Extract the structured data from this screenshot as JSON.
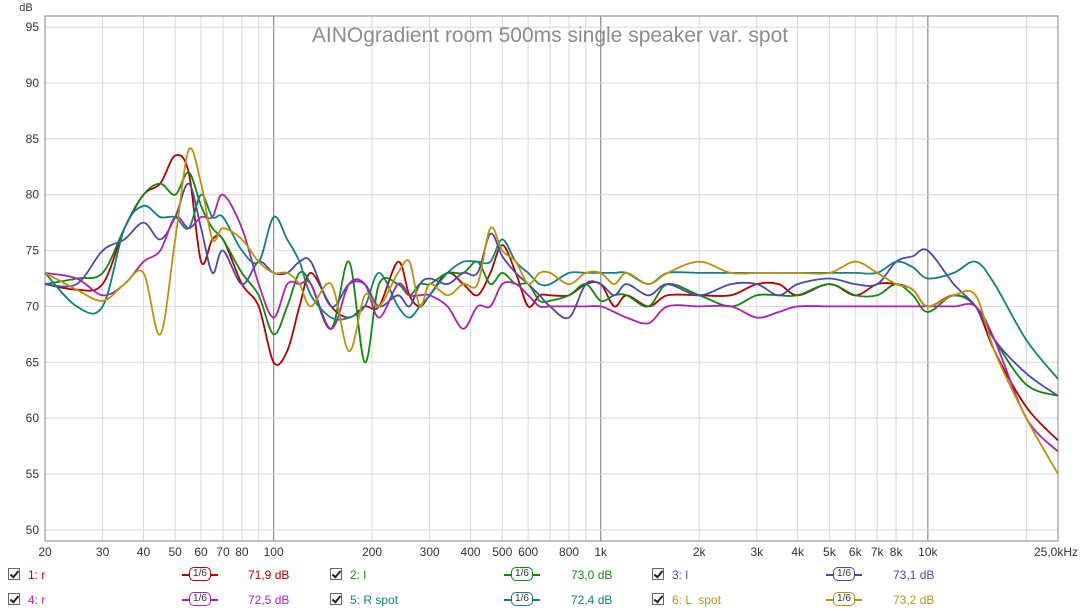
{
  "chart_data": {
    "type": "line",
    "title": "AINOgradient room 500ms single speaker var. spot",
    "ylabel": "dB",
    "xscale": "log",
    "xlim": [
      20,
      25000
    ],
    "ylim": [
      49,
      96
    ],
    "yticks": [
      50,
      55,
      60,
      65,
      70,
      75,
      80,
      85,
      90,
      95
    ],
    "xticks": [
      {
        "v": 20,
        "label": "20"
      },
      {
        "v": 30,
        "label": "30"
      },
      {
        "v": 40,
        "label": "40"
      },
      {
        "v": 50,
        "label": "50"
      },
      {
        "v": 60,
        "label": "60"
      },
      {
        "v": 70,
        "label": "70"
      },
      {
        "v": 80,
        "label": "80"
      },
      {
        "v": 100,
        "label": "100"
      },
      {
        "v": 200,
        "label": "200"
      },
      {
        "v": 300,
        "label": "300"
      },
      {
        "v": 400,
        "label": "400"
      },
      {
        "v": 500,
        "label": "500"
      },
      {
        "v": 600,
        "label": "600"
      },
      {
        "v": 800,
        "label": "800"
      },
      {
        "v": 1000,
        "label": "1k"
      },
      {
        "v": 2000,
        "label": "2k"
      },
      {
        "v": 3000,
        "label": "3k"
      },
      {
        "v": 4000,
        "label": "4k"
      },
      {
        "v": 5000,
        "label": "5k"
      },
      {
        "v": 6000,
        "label": "6k"
      },
      {
        "v": 7000,
        "label": "7k"
      },
      {
        "v": 8000,
        "label": "8k"
      },
      {
        "v": 10000,
        "label": "10k"
      },
      {
        "v": 25000,
        "label": "25,0kHz"
      }
    ],
    "grid": true,
    "series": [
      {
        "name": "1: r",
        "color": "#b00000",
        "smoothing": "1/6",
        "spl": "71,9 dB",
        "x": [
          20,
          25,
          30,
          35,
          40,
          45,
          50,
          55,
          60,
          65,
          70,
          80,
          90,
          100,
          110,
          120,
          130,
          150,
          170,
          190,
          210,
          240,
          260,
          280,
          300,
          340,
          380,
          420,
          460,
          500,
          550,
          600,
          650,
          700,
          800,
          900,
          1000,
          1100,
          1200,
          1400,
          1600,
          2000,
          2500,
          3000,
          3500,
          4000,
          5000,
          6000,
          7000,
          8000,
          9000,
          10000,
          12000,
          14000,
          16000,
          20000,
          25000
        ],
        "y": [
          72,
          71.5,
          72,
          77,
          80,
          81,
          83.5,
          82,
          74,
          76,
          76,
          72,
          70,
          65,
          66,
          70,
          73,
          70,
          69,
          70,
          70,
          74,
          71,
          70,
          71,
          73,
          72,
          71,
          73,
          75.5,
          73,
          70,
          71,
          71,
          71,
          72,
          72,
          70,
          71,
          70,
          71,
          71,
          71,
          72,
          72,
          71,
          72,
          71,
          72,
          72,
          71.5,
          70,
          71,
          70,
          66,
          61,
          58
        ]
      },
      {
        "name": "2: l",
        "color": "#108810",
        "smoothing": "1/6",
        "spl": "73,0 dB",
        "x": [
          20,
          25,
          30,
          35,
          40,
          45,
          50,
          55,
          60,
          65,
          70,
          80,
          90,
          100,
          110,
          120,
          130,
          150,
          170,
          190,
          210,
          240,
          260,
          280,
          300,
          340,
          380,
          420,
          460,
          500,
          550,
          600,
          650,
          700,
          800,
          900,
          1000,
          1100,
          1200,
          1400,
          1600,
          2000,
          2500,
          3000,
          3500,
          4000,
          5000,
          6000,
          7000,
          8000,
          9000,
          10000,
          12000,
          14000,
          16000,
          20000,
          25000
        ],
        "y": [
          72,
          72.5,
          73,
          77,
          80,
          81,
          80,
          82,
          79,
          77,
          76,
          73,
          71,
          67.5,
          70,
          73,
          72,
          68,
          74,
          65,
          72,
          72,
          71,
          72,
          72,
          73,
          73,
          74,
          72,
          73,
          72,
          72,
          70.5,
          70.5,
          71,
          72,
          70.5,
          71,
          71,
          70,
          72,
          71,
          70,
          71,
          71,
          71,
          72,
          71,
          71,
          72,
          71,
          69.5,
          71,
          70,
          67,
          63,
          62
        ]
      },
      {
        "name": "3: l",
        "color": "#4a4aa8",
        "smoothing": "1/6",
        "spl": "73,1 dB",
        "x": [
          20,
          25,
          30,
          35,
          40,
          45,
          50,
          55,
          60,
          65,
          70,
          80,
          90,
          100,
          110,
          120,
          130,
          150,
          170,
          190,
          210,
          240,
          260,
          280,
          300,
          340,
          380,
          420,
          460,
          500,
          550,
          600,
          650,
          700,
          800,
          900,
          1000,
          1100,
          1200,
          1400,
          1600,
          2000,
          2500,
          3000,
          3500,
          4000,
          5000,
          6000,
          7000,
          8000,
          9000,
          10000,
          12000,
          14000,
          16000,
          20000,
          25000
        ],
        "y": [
          72,
          72,
          75,
          76,
          77.5,
          76,
          78,
          81,
          77,
          73,
          75,
          72,
          74,
          73,
          73,
          74,
          74,
          70,
          72,
          72,
          70,
          71,
          70,
          72,
          72.5,
          72,
          73,
          73,
          76.5,
          74.5,
          73,
          72,
          71,
          70,
          69,
          72,
          72,
          71,
          72,
          71,
          72,
          71,
          72,
          72,
          71,
          72,
          72.5,
          72,
          72,
          74,
          74.5,
          75,
          72,
          70,
          67,
          64,
          62
        ]
      },
      {
        "name": "4: r",
        "color": "#b020b0",
        "smoothing": "1/6",
        "spl": "72,5 dB",
        "x": [
          20,
          25,
          30,
          35,
          40,
          45,
          50,
          55,
          60,
          65,
          70,
          80,
          90,
          100,
          110,
          120,
          130,
          150,
          170,
          190,
          210,
          240,
          260,
          280,
          300,
          340,
          380,
          420,
          460,
          500,
          550,
          600,
          650,
          700,
          800,
          900,
          1000,
          1100,
          1200,
          1400,
          1600,
          2000,
          2500,
          3000,
          3500,
          4000,
          5000,
          6000,
          7000,
          8000,
          9000,
          10000,
          12000,
          14000,
          16000,
          20000,
          25000
        ],
        "y": [
          73,
          72.5,
          71,
          72,
          74,
          75,
          78,
          77,
          78,
          78,
          80,
          77,
          72,
          69,
          72,
          72,
          72,
          68,
          72,
          72,
          69,
          72,
          71,
          71,
          71,
          70,
          68,
          70,
          70,
          72,
          72,
          71,
          70,
          70,
          70,
          70,
          70,
          69.5,
          69,
          68.5,
          70,
          70,
          70,
          69,
          69.5,
          70,
          70,
          70,
          70,
          70,
          70,
          70,
          70,
          70,
          67,
          60,
          57
        ]
      },
      {
        "name": "5: R spot",
        "color": "#108080",
        "smoothing": "1/6",
        "spl": "72,4 dB",
        "x": [
          20,
          25,
          30,
          35,
          40,
          45,
          50,
          55,
          60,
          65,
          70,
          80,
          90,
          100,
          110,
          120,
          130,
          150,
          170,
          190,
          210,
          240,
          260,
          280,
          300,
          340,
          380,
          420,
          460,
          500,
          550,
          600,
          650,
          700,
          800,
          900,
          1000,
          1100,
          1200,
          1400,
          1600,
          2000,
          2500,
          3000,
          3500,
          4000,
          5000,
          6000,
          7000,
          8000,
          9000,
          10000,
          12000,
          14000,
          16000,
          20000,
          25000
        ],
        "y": [
          73,
          70,
          70,
          77,
          79,
          78,
          78,
          77,
          80,
          78,
          78,
          75,
          74,
          78,
          76,
          74,
          71,
          69,
          69,
          70,
          73,
          70,
          69,
          70,
          71,
          73,
          74,
          74,
          74,
          76,
          74,
          73,
          72,
          72,
          73,
          73,
          73,
          73,
          73,
          72,
          73,
          73,
          73,
          73,
          73,
          73,
          73,
          73,
          73,
          74,
          73.5,
          72.5,
          73,
          74,
          72,
          67,
          63.5
        ]
      },
      {
        "name": "6: L  spot",
        "color": "#b8940c",
        "smoothing": "1/6",
        "spl": "73,2 dB",
        "x": [
          20,
          25,
          30,
          35,
          40,
          45,
          50,
          55,
          60,
          65,
          70,
          80,
          90,
          100,
          110,
          120,
          130,
          150,
          170,
          190,
          210,
          240,
          260,
          280,
          300,
          340,
          380,
          420,
          460,
          500,
          550,
          600,
          650,
          700,
          800,
          900,
          1000,
          1100,
          1200,
          1400,
          1600,
          2000,
          2500,
          3000,
          3500,
          4000,
          5000,
          6000,
          7000,
          8000,
          9000,
          10000,
          12000,
          14000,
          16000,
          20000,
          25000
        ],
        "y": [
          73,
          71.5,
          70.5,
          72,
          73,
          67.5,
          76,
          84,
          81,
          76,
          77,
          76,
          74,
          73,
          73,
          72,
          70,
          72,
          66,
          71,
          70,
          73,
          74,
          70,
          72,
          71,
          72,
          72,
          77,
          75,
          74,
          72,
          73,
          73,
          72,
          73,
          73,
          72,
          73,
          72,
          73,
          74,
          73,
          73,
          73,
          73,
          73,
          74,
          73,
          72,
          71.5,
          70,
          71,
          71,
          66,
          60,
          55
        ]
      }
    ]
  }
}
